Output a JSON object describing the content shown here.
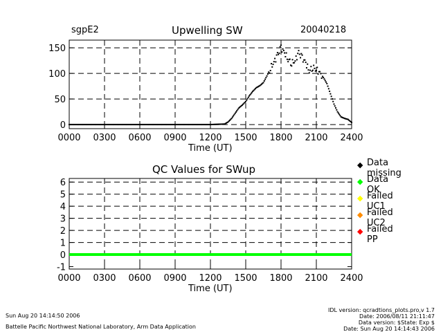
{
  "chart_data": [
    {
      "type": "scatter",
      "title": "Upwelling SW",
      "site": "sgpE2",
      "date": "20040218",
      "xlabel": "Time (UT)",
      "ylabel": "",
      "x_ticks": [
        "0000",
        "0300",
        "0600",
        "0900",
        "1200",
        "1500",
        "1800",
        "2100",
        "2400"
      ],
      "y_ticks": [
        0,
        50,
        100,
        150
      ],
      "xlim": [
        0,
        24
      ],
      "ylim": [
        -8,
        165
      ],
      "grid": true,
      "series": [
        {
          "x": [
            0,
            3,
            6,
            9,
            12,
            13.2,
            13.5,
            13.8,
            14.1,
            14.4,
            14.7,
            15.0,
            15.3,
            15.6,
            15.9,
            16.2,
            16.5,
            16.8,
            17.1,
            17.4,
            17.7,
            18.0,
            18.3,
            18.6,
            18.9,
            19.2,
            19.5,
            19.8,
            20.1,
            20.4,
            20.7,
            21.0,
            21.3,
            21.6,
            21.9,
            22.2,
            22.5,
            22.8,
            23.1,
            23.4,
            23.7,
            24.0
          ],
          "y": [
            0,
            0,
            0,
            0,
            0,
            1,
            5,
            12,
            22,
            32,
            38,
            45,
            56,
            65,
            72,
            76,
            82,
            95,
            110,
            122,
            135,
            150,
            140,
            128,
            120,
            125,
            140,
            130,
            120,
            105,
            112,
            108,
            100,
            92,
            80,
            60,
            40,
            25,
            15,
            12,
            10,
            4
          ]
        }
      ]
    },
    {
      "type": "line",
      "title": "QC Values for SWup",
      "xlabel": "Time (UT)",
      "ylabel": "",
      "x_ticks": [
        "0000",
        "0300",
        "0600",
        "0900",
        "1200",
        "1500",
        "1800",
        "2100",
        "2400"
      ],
      "y_ticks": [
        -1,
        0,
        1,
        2,
        3,
        4,
        5,
        6
      ],
      "xlim": [
        0,
        24
      ],
      "ylim": [
        -1.2,
        6.3
      ],
      "grid": true,
      "series": [
        {
          "x": [
            0,
            24
          ],
          "y": [
            0,
            0
          ],
          "color": "#00ff00"
        }
      ]
    }
  ],
  "legend": [
    {
      "label": "Data missing",
      "color": "#000000"
    },
    {
      "label": "Data OK",
      "color": "#00ff00"
    },
    {
      "label": "Failed UC1",
      "color": "#ffff00"
    },
    {
      "label": "Failed UC2",
      "color": "#ff8c00"
    },
    {
      "label": "Failed PP",
      "color": "#ff0000"
    }
  ],
  "footer": {
    "left_date": "Sun Aug 20 14:14:50 2006",
    "left_org": "Battelle Pacific Northwest National Laboratory, Arm Data Application",
    "right_lines": [
      "IDL version: qcradtions_plots.pro,v 1.7",
      "Date: 2006/08/11 21:11:47",
      "Data version: $State: Exp $",
      "Date: Sun Aug 20 14:14:43 2006"
    ]
  }
}
